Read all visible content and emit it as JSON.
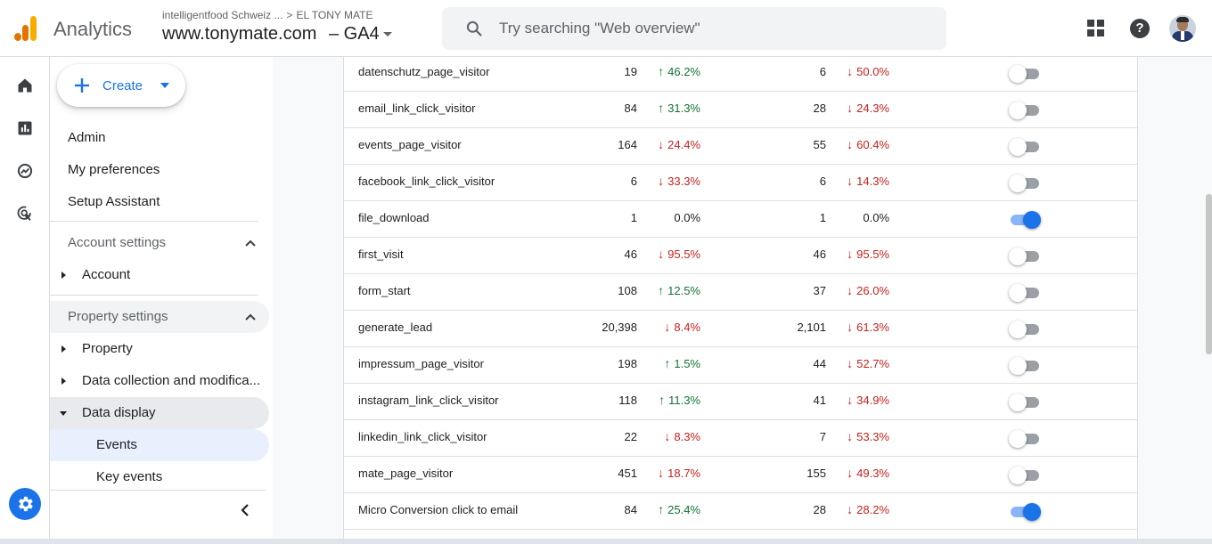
{
  "header": {
    "app_name": "Analytics",
    "account": "intelligentfood Schweiz ...",
    "account_sub": "EL TONY MATE",
    "property": "www.tonymate.com",
    "property_suffix": "– GA4",
    "search_placeholder": "Try searching \"Web overview\""
  },
  "rail": {
    "icons": [
      "home-icon",
      "reports-icon",
      "explore-icon",
      "advertising-icon"
    ],
    "settings_icon": "gear-icon"
  },
  "panel": {
    "create_label": "Create",
    "admin": "Admin",
    "preferences": "My preferences",
    "setup": "Setup Assistant",
    "account_settings": "Account settings",
    "account": "Account",
    "property_settings": "Property settings",
    "property": "Property",
    "data_collection": "Data collection and modifica...",
    "data_display": "Data display",
    "events": "Events",
    "key_events": "Key events"
  },
  "colors": {
    "accent": "#1a73e8",
    "up": "#137333",
    "down": "#c5221f"
  },
  "events": [
    {
      "name": "datenschutz_page_visitor",
      "count": "19",
      "count_dir": "up",
      "count_chg": "46.2%",
      "users": "6",
      "users_dir": "down",
      "users_chg": "50.0%",
      "key_event": false
    },
    {
      "name": "email_link_click_visitor",
      "count": "84",
      "count_dir": "up",
      "count_chg": "31.3%",
      "users": "28",
      "users_dir": "down",
      "users_chg": "24.3%",
      "key_event": false
    },
    {
      "name": "events_page_visitor",
      "count": "164",
      "count_dir": "down",
      "count_chg": "24.4%",
      "users": "55",
      "users_dir": "down",
      "users_chg": "60.4%",
      "key_event": false
    },
    {
      "name": "facebook_link_click_visitor",
      "count": "6",
      "count_dir": "down",
      "count_chg": "33.3%",
      "users": "6",
      "users_dir": "down",
      "users_chg": "14.3%",
      "key_event": false
    },
    {
      "name": "file_download",
      "count": "1",
      "count_dir": "flat",
      "count_chg": "0.0%",
      "users": "1",
      "users_dir": "flat",
      "users_chg": "0.0%",
      "key_event": true
    },
    {
      "name": "first_visit",
      "count": "46",
      "count_dir": "down",
      "count_chg": "95.5%",
      "users": "46",
      "users_dir": "down",
      "users_chg": "95.5%",
      "key_event": false
    },
    {
      "name": "form_start",
      "count": "108",
      "count_dir": "up",
      "count_chg": "12.5%",
      "users": "37",
      "users_dir": "down",
      "users_chg": "26.0%",
      "key_event": false
    },
    {
      "name": "generate_lead",
      "count": "20,398",
      "count_dir": "down",
      "count_chg": "8.4%",
      "users": "2,101",
      "users_dir": "down",
      "users_chg": "61.3%",
      "key_event": false
    },
    {
      "name": "impressum_page_visitor",
      "count": "198",
      "count_dir": "up",
      "count_chg": "1.5%",
      "users": "44",
      "users_dir": "down",
      "users_chg": "52.7%",
      "key_event": false
    },
    {
      "name": "instagram_link_click_visitor",
      "count": "118",
      "count_dir": "up",
      "count_chg": "11.3%",
      "users": "41",
      "users_dir": "down",
      "users_chg": "34.9%",
      "key_event": false
    },
    {
      "name": "linkedin_link_click_visitor",
      "count": "22",
      "count_dir": "down",
      "count_chg": "8.3%",
      "users": "7",
      "users_dir": "down",
      "users_chg": "53.3%",
      "key_event": false
    },
    {
      "name": "mate_page_visitor",
      "count": "451",
      "count_dir": "down",
      "count_chg": "18.7%",
      "users": "155",
      "users_dir": "down",
      "users_chg": "49.3%",
      "key_event": false
    },
    {
      "name": "Micro Conversion click to email",
      "count": "84",
      "count_dir": "up",
      "count_chg": "25.4%",
      "users": "28",
      "users_dir": "down",
      "users_chg": "28.2%",
      "key_event": true
    }
  ]
}
